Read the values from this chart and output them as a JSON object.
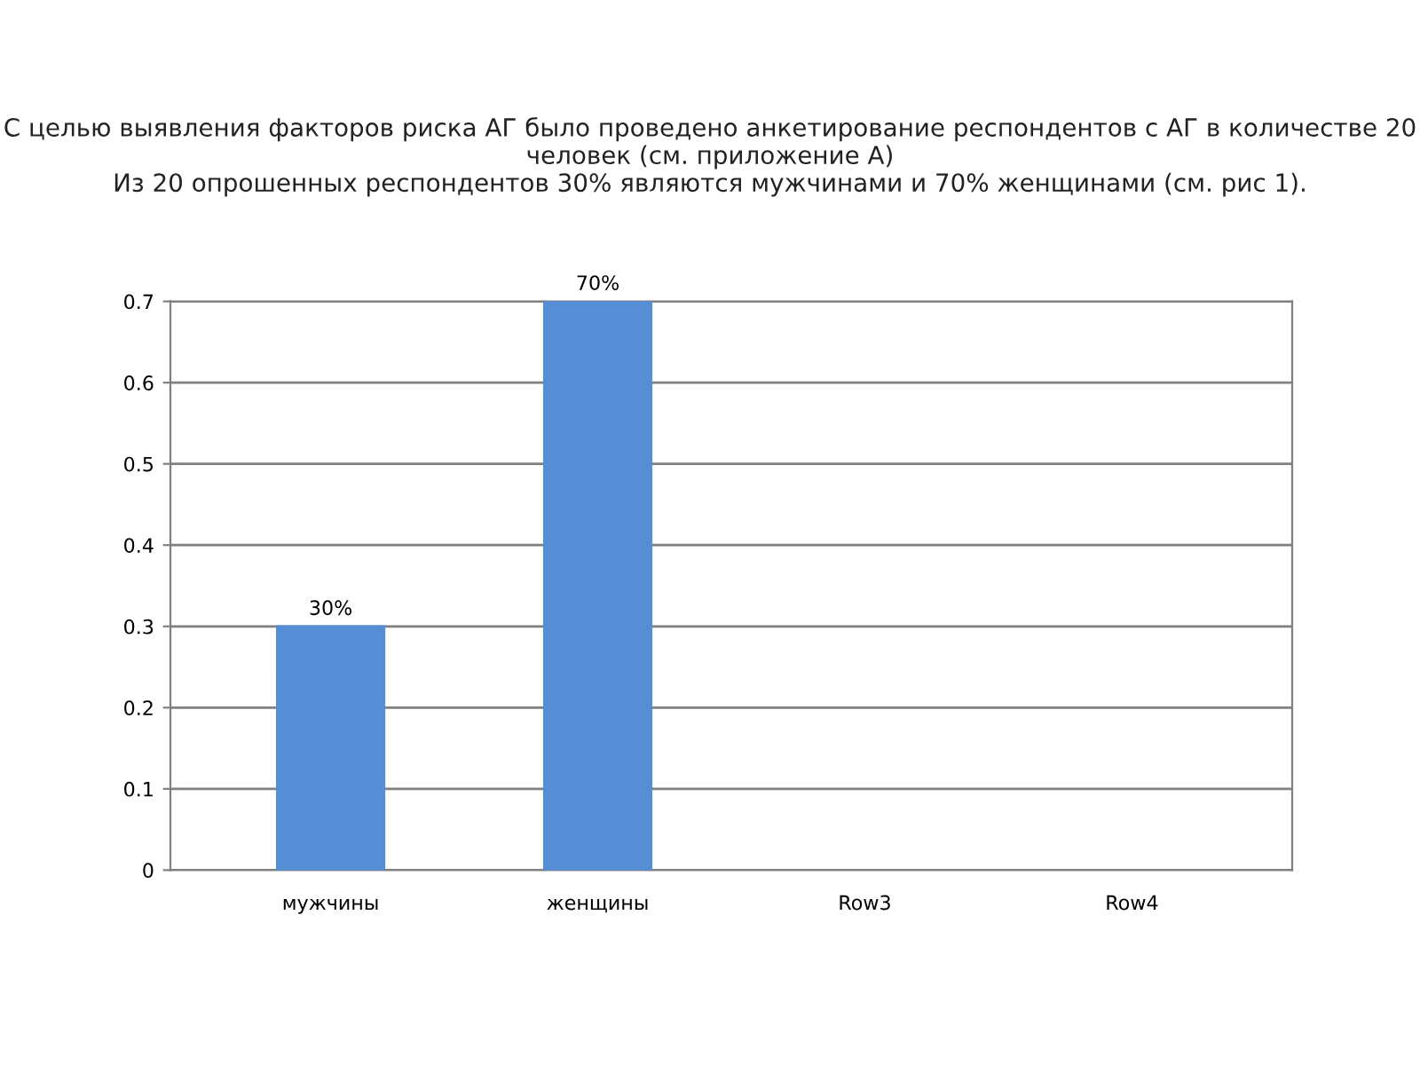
{
  "chart_data": {
    "type": "bar",
    "title": "С целью выявления факторов риска АГ было проведено анкетирование респондентов с АГ в количестве 20 человек (см. приложение А)\nИз 20 опрошенных респондентов 30% являются мужчинами и 70% женщинами (см. рис 1).",
    "categories": [
      "мужчины",
      "женщины",
      "Row3",
      "Row4"
    ],
    "series": [
      {
        "color": "#558ed5",
        "values": [
          0.3,
          0.7,
          null,
          null
        ]
      }
    ],
    "value_labels": [
      "30%",
      "70%",
      null,
      null
    ],
    "ylim": [
      0,
      0.7
    ],
    "yticks": [
      0,
      0.1,
      0.2,
      0.3,
      0.4,
      0.5,
      0.6,
      0.7
    ],
    "grid": "y"
  }
}
